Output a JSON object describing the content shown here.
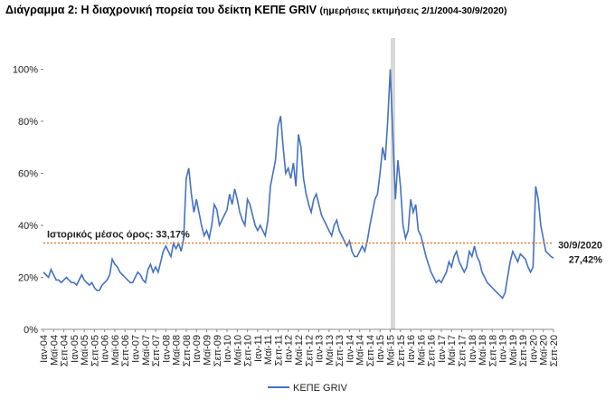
{
  "chart_data": {
    "type": "line",
    "title": "Διάγραμμα 2: Η διαχρονική πορεία του δείκτη ΚΕΠΕ GRIV",
    "subtitle": "(ημερήσιες εκτιμήσεις 2/1/2004-30/9/2020)",
    "categories": [
      "Ιαν-04",
      null,
      null,
      null,
      "Μαϊ-04",
      null,
      null,
      null,
      "Σεπ-04",
      null,
      null,
      null,
      "Ιαν-05",
      null,
      null,
      null,
      "Μαϊ-05",
      null,
      null,
      null,
      "Σεπ-05",
      null,
      null,
      null,
      "Ιαν-06",
      null,
      null,
      null,
      "Μαϊ-06",
      null,
      null,
      null,
      "Σεπ-06",
      null,
      null,
      null,
      "Ιαν-07",
      null,
      null,
      null,
      "Μαϊ-07",
      null,
      null,
      null,
      "Σεπ-07",
      null,
      null,
      null,
      "Ιαν-08",
      null,
      null,
      null,
      "Μαϊ-08",
      null,
      null,
      null,
      "Σεπ-08",
      null,
      null,
      null,
      "Ιαν-09",
      null,
      null,
      null,
      "Μαϊ-09",
      null,
      null,
      null,
      "Σεπ-09",
      null,
      null,
      null,
      "Ιαν-10",
      null,
      null,
      null,
      "Μαϊ-10",
      null,
      null,
      null,
      "Σεπ-10",
      null,
      null,
      null,
      "Ιαν-11",
      null,
      null,
      null,
      "Μαϊ-11",
      null,
      null,
      null,
      "Σεπ-11",
      null,
      null,
      null,
      "Ιαν-12",
      null,
      null,
      null,
      "Μαϊ-12",
      null,
      null,
      null,
      "Σεπ-12",
      null,
      null,
      null,
      "Ιαν-13",
      null,
      null,
      null,
      "Μαϊ-13",
      null,
      null,
      null,
      "Σεπ-13",
      null,
      null,
      null,
      "Ιαν-14",
      null,
      null,
      null,
      "Μαϊ-14",
      null,
      null,
      null,
      "Σεπ-14",
      null,
      null,
      null,
      "Ιαν-15",
      null,
      null,
      null,
      "Μαϊ-15",
      null,
      null,
      null,
      "Σεπ-15",
      null,
      null,
      null,
      "Ιαν-16",
      null,
      null,
      null,
      "Μαϊ-16",
      null,
      null,
      null,
      "Σεπ-16",
      null,
      null,
      null,
      "Ιαν-17",
      null,
      null,
      null,
      "Μαϊ-17",
      null,
      null,
      null,
      "Σεπ-17",
      null,
      null,
      null,
      "Ιαν-18",
      null,
      null,
      null,
      "Μαϊ-18",
      null,
      null,
      null,
      "Σεπ-18",
      null,
      null,
      null,
      "Ιαν-19",
      null,
      null,
      null,
      "Μαϊ-19",
      null,
      null,
      null,
      "Σεπ-19",
      null,
      null,
      null,
      "Ιαν-20",
      null,
      null,
      null,
      "Μαϊ-20",
      null,
      null,
      null,
      "Σεπ-20"
    ],
    "series": [
      {
        "name": "ΚΕΠΕ GRIV",
        "color": "#4472c4",
        "values": [
          22,
          21,
          20,
          23,
          21,
          19,
          19,
          18,
          19,
          20,
          19,
          18,
          18,
          17,
          19,
          21,
          19,
          18,
          17,
          18,
          16,
          15,
          15,
          17,
          18,
          19,
          21,
          27,
          25,
          24,
          22,
          21,
          20,
          19,
          18,
          18,
          20,
          22,
          21,
          19,
          18,
          23,
          25,
          22,
          24,
          22,
          26,
          30,
          32,
          30,
          28,
          33,
          31,
          33,
          30,
          35,
          58,
          62,
          52,
          45,
          50,
          45,
          40,
          36,
          38,
          35,
          40,
          48,
          46,
          40,
          42,
          44,
          46,
          52,
          48,
          54,
          50,
          45,
          42,
          40,
          50,
          48,
          44,
          40,
          38,
          40,
          38,
          36,
          42,
          55,
          60,
          65,
          78,
          82,
          70,
          60,
          62,
          58,
          64,
          55,
          75,
          70,
          58,
          52,
          48,
          45,
          50,
          52,
          48,
          44,
          42,
          40,
          38,
          36,
          40,
          42,
          38,
          36,
          34,
          32,
          34,
          30,
          28,
          28,
          30,
          32,
          30,
          34,
          40,
          45,
          50,
          52,
          60,
          70,
          65,
          80,
          100,
          75,
          50,
          65,
          55,
          40,
          35,
          38,
          50,
          45,
          48,
          38,
          36,
          32,
          28,
          25,
          22,
          20,
          18,
          19,
          18,
          20,
          22,
          26,
          24,
          28,
          30,
          26,
          24,
          22,
          24,
          30,
          28,
          32,
          28,
          26,
          22,
          20,
          18,
          17,
          16,
          15,
          14,
          13,
          12,
          14,
          20,
          26,
          30,
          28,
          26,
          29,
          28,
          27,
          24,
          22,
          24,
          55,
          50,
          40,
          35,
          30,
          29,
          28,
          27.42
        ]
      }
    ],
    "mean": 33.17,
    "mean_color": "#ed7d31",
    "mean_label": "Ιστορικός μέσος όρος: 33,17%",
    "last_date": "30/9/2020",
    "last_label": "27,42%",
    "ylim": [
      0,
      112
    ],
    "yticks": [
      {
        "value": 0,
        "label": "0%"
      },
      {
        "value": 20,
        "label": "20%"
      },
      {
        "value": 40,
        "label": "40%"
      },
      {
        "value": 60,
        "label": "60%"
      },
      {
        "value": 80,
        "label": "80%"
      },
      {
        "value": 100,
        "label": "100%"
      }
    ]
  }
}
